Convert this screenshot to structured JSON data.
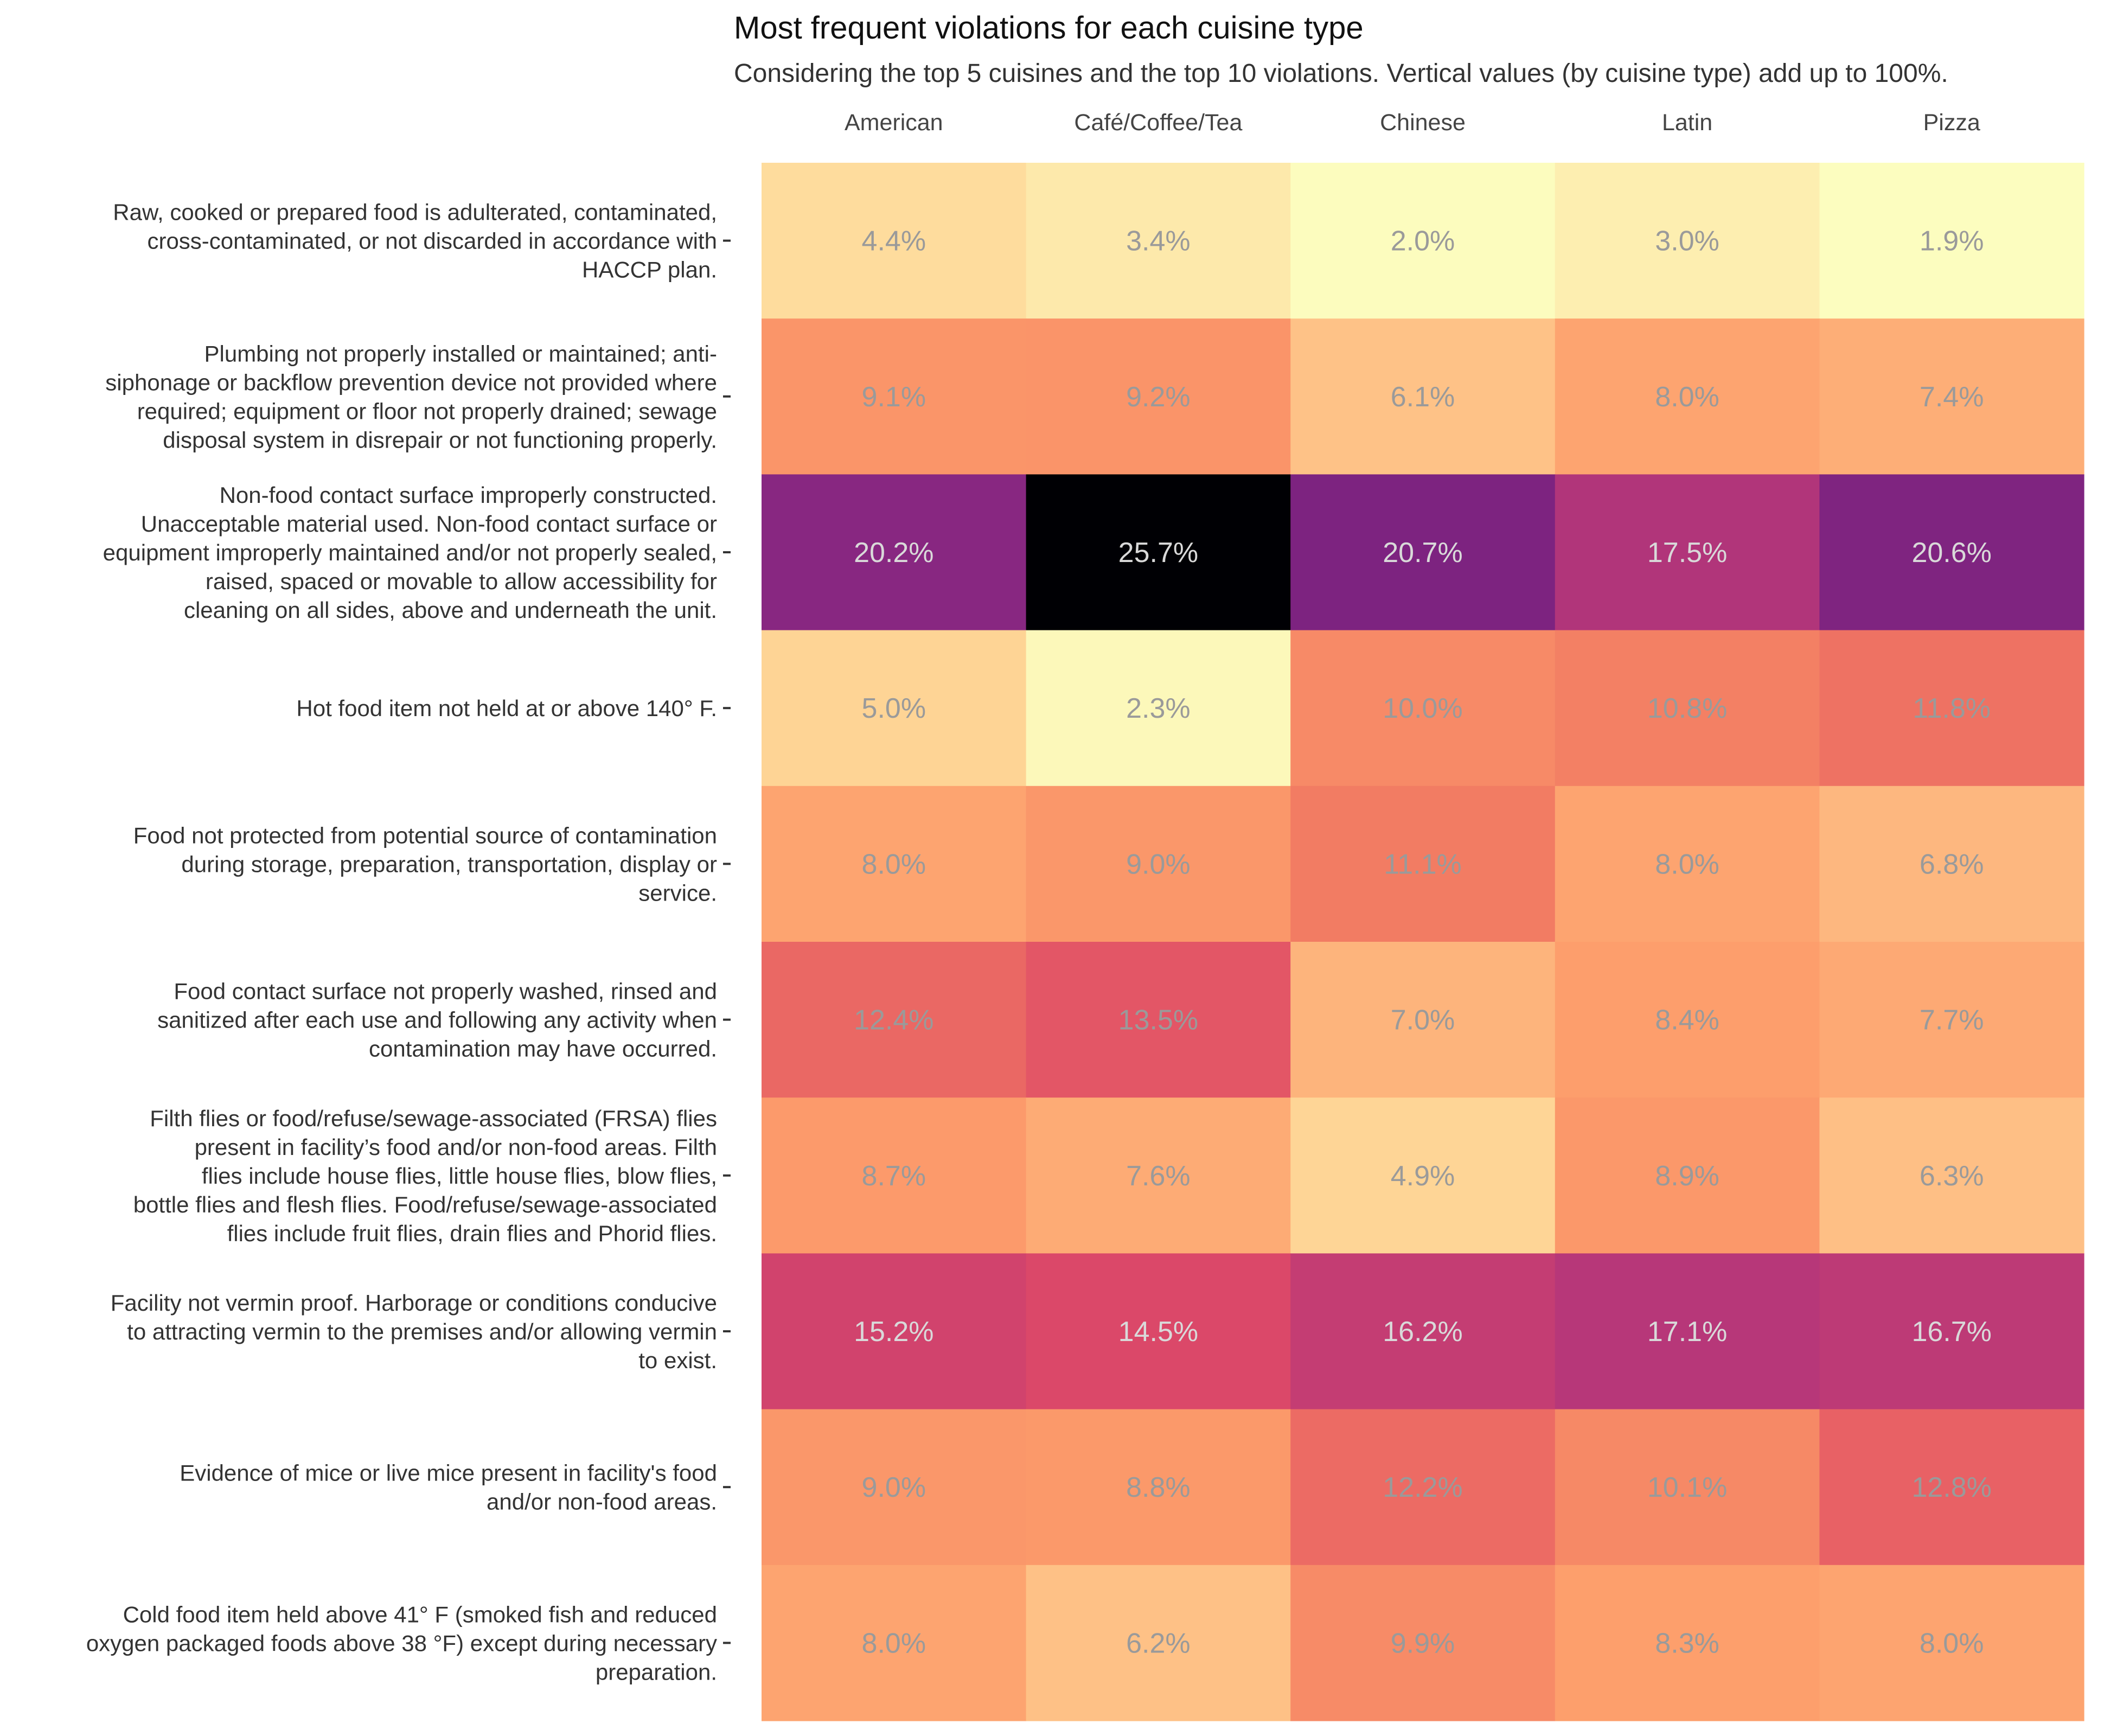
{
  "chart": {
    "title": "Most frequent violations for each cuisine type",
    "subtitle": "Considering the top 5 cuisines and the top 10 violations. Vertical values (by cuisine type) add up to 100%."
  },
  "chart_data": {
    "type": "heatmap",
    "title": "Most frequent violations for each cuisine type",
    "subtitle": "Considering the top 5 cuisines and the top 10 violations. Vertical values (by cuisine type) add up to 100%.",
    "x_position": "top",
    "colorscale": "magma (reversed)",
    "value_range": [
      1.9,
      25.7
    ],
    "grid": false,
    "legend": "none",
    "columns": [
      "American",
      "Café/Coffee/Tea",
      "Chinese",
      "Latin",
      "Pizza"
    ],
    "rows": [
      {
        "label_lines": [
          "Raw, cooked or prepared food is adulterated, contaminated,",
          "cross-contaminated, or not discarded in accordance with",
          "HACCP plan."
        ],
        "values": [
          4.4,
          3.4,
          2.0,
          3.0,
          1.9
        ],
        "labels": [
          "4.4%",
          "3.4%",
          "2.0%",
          "3.0%",
          "1.9%"
        ]
      },
      {
        "label_lines": [
          "Plumbing not properly installed or maintained; anti-",
          "siphonage or backflow prevention device not provided where",
          "required; equipment or floor not properly drained; sewage",
          "disposal system in disrepair or not functioning properly."
        ],
        "values": [
          9.1,
          9.2,
          6.1,
          8.0,
          7.4
        ],
        "labels": [
          "9.1%",
          "9.2%",
          "6.1%",
          "8.0%",
          "7.4%"
        ]
      },
      {
        "label_lines": [
          "Non-food contact surface improperly constructed.",
          "Unacceptable material used. Non-food contact surface or",
          "equipment improperly maintained and/or not properly sealed,",
          "raised, spaced or movable to allow accessibility for",
          "cleaning on all sides, above and underneath the unit."
        ],
        "values": [
          20.2,
          25.7,
          20.7,
          17.5,
          20.6
        ],
        "labels": [
          "20.2%",
          "25.7%",
          "20.7%",
          "17.5%",
          "20.6%"
        ]
      },
      {
        "label_lines": [
          "Hot food item not held at or above 140° F."
        ],
        "values": [
          5.0,
          2.3,
          10.0,
          10.8,
          11.8
        ],
        "labels": [
          "5.0%",
          "2.3%",
          "10.0%",
          "10.8%",
          "11.8%"
        ]
      },
      {
        "label_lines": [
          "Food not protected from potential source of contamination",
          "during storage, preparation, transportation, display or",
          "service."
        ],
        "values": [
          8.0,
          9.0,
          11.1,
          8.0,
          6.8
        ],
        "labels": [
          "8.0%",
          "9.0%",
          "11.1%",
          "8.0%",
          "6.8%"
        ]
      },
      {
        "label_lines": [
          "Food contact surface not properly washed, rinsed and",
          "sanitized after each use and following any activity when",
          "contamination may have occurred."
        ],
        "values": [
          12.4,
          13.5,
          7.0,
          8.4,
          7.7
        ],
        "labels": [
          "12.4%",
          "13.5%",
          "7.0%",
          "8.4%",
          "7.7%"
        ]
      },
      {
        "label_lines": [
          "Filth flies or food/refuse/sewage-associated (FRSA) flies",
          "present in facility’s food and/or non-food areas. Filth",
          "flies include house flies, little house flies, blow flies,",
          "bottle flies and flesh flies. Food/refuse/sewage-associated",
          "flies include fruit flies, drain flies and Phorid flies."
        ],
        "values": [
          8.7,
          7.6,
          4.9,
          8.9,
          6.3
        ],
        "labels": [
          "8.7%",
          "7.6%",
          "4.9%",
          "8.9%",
          "6.3%"
        ]
      },
      {
        "label_lines": [
          "Facility not vermin proof. Harborage or conditions conducive",
          "to attracting vermin to the premises and/or allowing vermin",
          "to exist."
        ],
        "values": [
          15.2,
          14.5,
          16.2,
          17.1,
          16.7
        ],
        "labels": [
          "15.2%",
          "14.5%",
          "16.2%",
          "17.1%",
          "16.7%"
        ]
      },
      {
        "label_lines": [
          "Evidence of mice or live mice present in facility's food",
          "and/or non-food areas."
        ],
        "values": [
          9.0,
          8.8,
          12.2,
          10.1,
          12.8
        ],
        "labels": [
          "9.0%",
          "8.8%",
          "12.2%",
          "10.1%",
          "12.8%"
        ]
      },
      {
        "label_lines": [
          "Cold food item held above 41° F (smoked fish and reduced",
          "oxygen packaged foods above 38 °F) except during necessary",
          "preparation."
        ],
        "values": [
          8.0,
          6.2,
          9.9,
          8.3,
          8.0
        ],
        "labels": [
          "8.0%",
          "6.2%",
          "9.9%",
          "8.3%",
          "8.0%"
        ]
      }
    ]
  }
}
